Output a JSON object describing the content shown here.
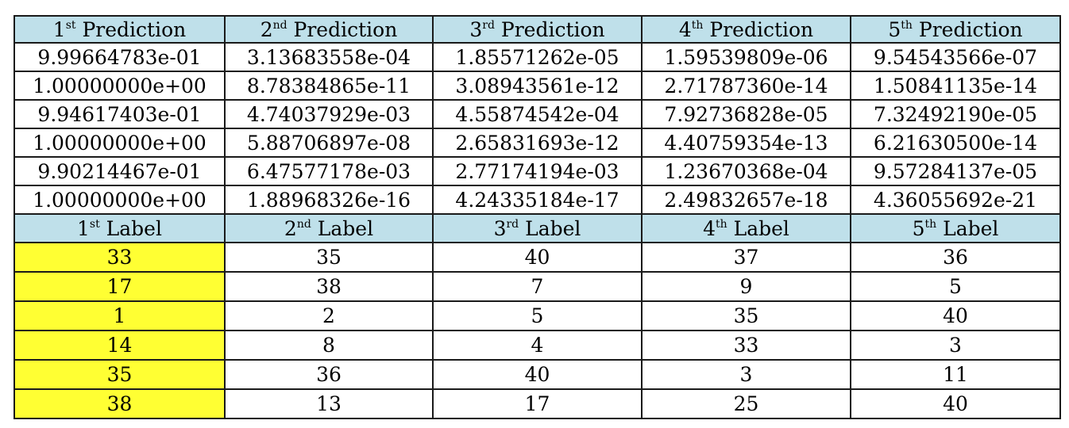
{
  "prediction_headers": [
    {
      "num": "1",
      "suffix": "st",
      "text": "Prediction"
    },
    {
      "num": "2",
      "suffix": "nd",
      "text": "Prediction"
    },
    {
      "num": "3",
      "suffix": "rd",
      "text": "Prediction"
    },
    {
      "num": "4",
      "suffix": "th",
      "text": "Prediction"
    },
    {
      "num": "5",
      "suffix": "th",
      "text": "Prediction"
    }
  ],
  "predictions": [
    [
      "9.99664783e-01",
      "3.13683558e-04",
      "1.85571262e-05",
      "1.59539809e-06",
      "9.54543566e-07"
    ],
    [
      "1.00000000e+00",
      "8.78384865e-11",
      "3.08943561e-12",
      "2.71787360e-14",
      "1.50841135e-14"
    ],
    [
      "9.94617403e-01",
      "4.74037929e-03",
      "4.55874542e-04",
      "7.92736828e-05",
      "7.32492190e-05"
    ],
    [
      "1.00000000e+00",
      "5.88706897e-08",
      "2.65831693e-12",
      "4.40759354e-13",
      "6.21630500e-14"
    ],
    [
      "9.90214467e-01",
      "6.47577178e-03",
      "2.77174194e-03",
      "1.23670368e-04",
      "9.57284137e-05"
    ],
    [
      "1.00000000e+00",
      "1.88968326e-16",
      "4.24335184e-17",
      "2.49832657e-18",
      "4.36055692e-21"
    ]
  ],
  "label_headers": [
    {
      "num": "1",
      "suffix": "st",
      "text": "Label"
    },
    {
      "num": "2",
      "suffix": "nd",
      "text": "Label"
    },
    {
      "num": "3",
      "suffix": "rd",
      "text": "Label"
    },
    {
      "num": "4",
      "suffix": "th",
      "text": "Label"
    },
    {
      "num": "5",
      "suffix": "th",
      "text": "Label"
    }
  ],
  "labels": [
    [
      "33",
      "35",
      "40",
      "37",
      "36"
    ],
    [
      "17",
      "38",
      "7",
      "9",
      "5"
    ],
    [
      "1",
      "2",
      "5",
      "35",
      "40"
    ],
    [
      "14",
      "8",
      "4",
      "33",
      "3"
    ],
    [
      "35",
      "36",
      "40",
      "3",
      "11"
    ],
    [
      "38",
      "13",
      "17",
      "25",
      "40"
    ]
  ],
  "colors": {
    "header_bg": "#bfe0ea",
    "highlight_bg": "#ffff33"
  }
}
